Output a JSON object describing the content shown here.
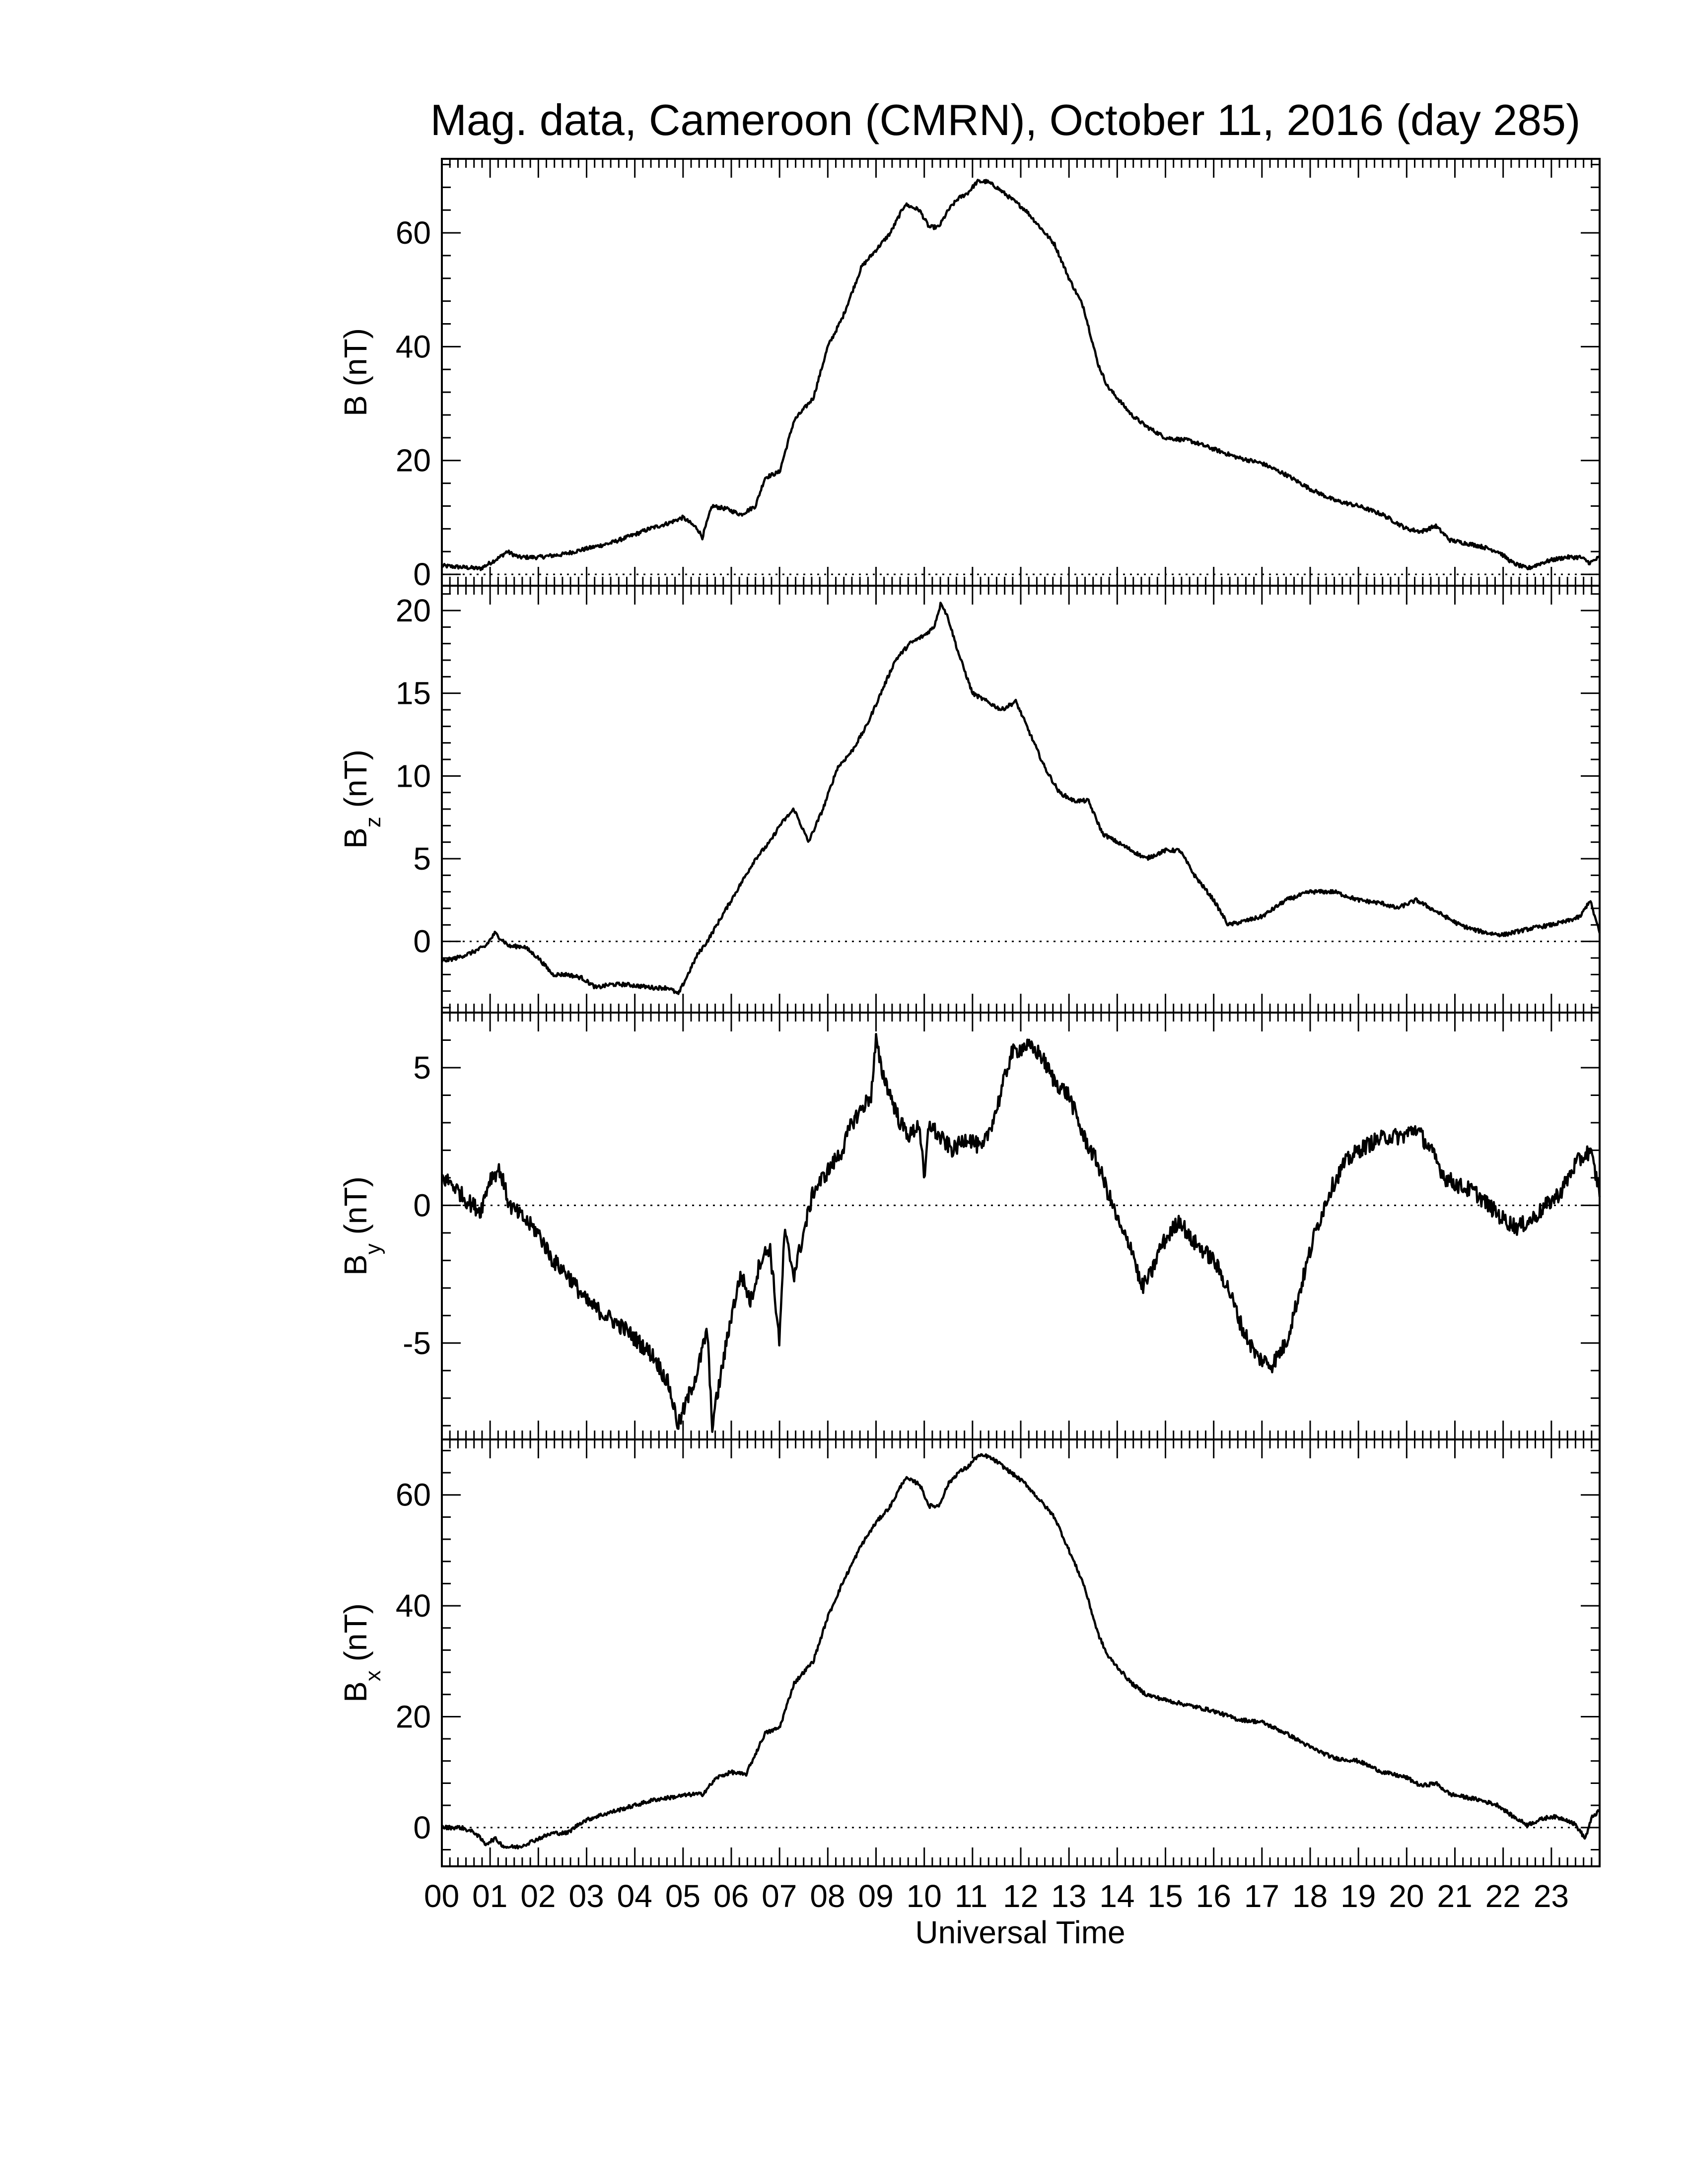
{
  "chart_data": {
    "title": "Mag. data, Cameroon (CMRN), October 11, 2016 (day 285)",
    "xlabel": "Universal Time",
    "x_tick_labels": [
      "00",
      "01",
      "02",
      "03",
      "04",
      "05",
      "06",
      "07",
      "08",
      "09",
      "10",
      "11",
      "12",
      "13",
      "14",
      "15",
      "16",
      "17",
      "18",
      "19",
      "20",
      "21",
      "22",
      "23"
    ],
    "xlim": [
      0,
      24
    ],
    "line_color": "#000000",
    "reference_line": "dotted zero line",
    "panels": [
      {
        "type": "line",
        "ylabel_main": "B",
        "ylabel_sub": "",
        "ylabel_unit": "(nT)",
        "ylim": [
          -2,
          73
        ],
        "yticks": [
          0,
          20,
          40,
          60
        ],
        "ytick_labels": [
          "0",
          "20",
          "40",
          "60"
        ],
        "noise": 0.35,
        "x": [
          0,
          0.5,
          0.8,
          1.0,
          1.2,
          1.35,
          1.6,
          2.0,
          2.5,
          3.0,
          3.5,
          4.0,
          4.3,
          4.7,
          5.0,
          5.3,
          5.4,
          5.6,
          5.9,
          6.2,
          6.5,
          6.7,
          7.0,
          7.3,
          7.7,
          8.0,
          8.3,
          8.7,
          9.0,
          9.3,
          9.6,
          9.9,
          10.1,
          10.3,
          10.5,
          10.7,
          10.9,
          11.1,
          11.3,
          11.5,
          11.8,
          12.1,
          12.4,
          12.7,
          13.0,
          13.3,
          13.6,
          13.8,
          14.0,
          14.3,
          14.6,
          15.0,
          15.5,
          16.0,
          16.5,
          17.0,
          17.5,
          18.0,
          18.5,
          19.0,
          19.5,
          20.0,
          20.3,
          20.6,
          20.9,
          21.2,
          21.5,
          21.9,
          22.2,
          22.5,
          22.8,
          23.0,
          23.3,
          23.6,
          23.8,
          24.0
        ],
        "y": [
          1.5,
          1.2,
          1.0,
          2.0,
          3.0,
          4.0,
          3.0,
          3.0,
          3.5,
          4.5,
          5.5,
          7.0,
          8.0,
          9.0,
          10.0,
          8.0,
          6.5,
          12.0,
          11.5,
          10.5,
          12.0,
          17.0,
          18.0,
          27.0,
          31.0,
          40.0,
          45.0,
          54.0,
          57.0,
          60.0,
          65.0,
          64.0,
          61.0,
          61.0,
          64.0,
          66.0,
          67.0,
          69.0,
          69.0,
          68.0,
          66.0,
          64.0,
          61.0,
          58.0,
          52.0,
          47.0,
          37.0,
          33.0,
          31.0,
          28.0,
          26.0,
          24.0,
          23.5,
          22.0,
          20.5,
          19.5,
          17.5,
          15.0,
          13.0,
          12.0,
          10.5,
          8.0,
          7.5,
          8.5,
          6.0,
          5.5,
          5.0,
          4.0,
          2.0,
          1.0,
          2.0,
          2.5,
          3.0,
          3.0,
          2.0,
          3.0
        ]
      },
      {
        "type": "line",
        "ylabel_main": "B",
        "ylabel_sub": "z",
        "ylabel_unit": "(nT)",
        "ylim": [
          -4.3,
          21.5
        ],
        "yticks": [
          0,
          5,
          10,
          15,
          20
        ],
        "ytick_labels": [
          "0",
          "5",
          "10",
          "15",
          "20"
        ],
        "noise": 0.12,
        "x": [
          0,
          0.3,
          0.6,
          0.9,
          1.1,
          1.4,
          1.7,
          2.0,
          2.3,
          2.6,
          2.9,
          3.2,
          3.5,
          3.8,
          4.1,
          4.4,
          4.7,
          4.9,
          5.1,
          5.3,
          5.5,
          5.7,
          5.9,
          6.2,
          6.5,
          6.8,
          7.0,
          7.3,
          7.6,
          7.9,
          8.2,
          8.5,
          8.8,
          9.1,
          9.4,
          9.7,
          10.0,
          10.2,
          10.35,
          10.5,
          10.7,
          11.0,
          11.3,
          11.6,
          11.9,
          12.2,
          12.5,
          12.8,
          13.1,
          13.4,
          13.7,
          14.0,
          14.3,
          14.6,
          15.0,
          15.3,
          15.6,
          16.0,
          16.3,
          16.6,
          17.0,
          17.5,
          18.0,
          18.5,
          19.0,
          19.5,
          19.8,
          20.2,
          20.5,
          20.8,
          21.1,
          21.4,
          21.7,
          22.0,
          22.3,
          22.6,
          23.0,
          23.3,
          23.6,
          23.8,
          24.0
        ],
        "y": [
          -1.2,
          -1.0,
          -0.7,
          -0.3,
          0.5,
          -0.3,
          -0.3,
          -1.0,
          -2.0,
          -2.0,
          -2.2,
          -2.8,
          -2.6,
          -2.6,
          -2.7,
          -2.8,
          -2.8,
          -3.2,
          -2.0,
          -0.8,
          0.0,
          1.0,
          2.0,
          3.5,
          5.0,
          6.0,
          7.0,
          8.0,
          6.0,
          8.0,
          10.5,
          11.5,
          13.0,
          15.0,
          17.0,
          18.0,
          18.5,
          19.0,
          20.5,
          19.5,
          17.5,
          15.0,
          14.5,
          14.0,
          14.5,
          12.5,
          10.5,
          9.0,
          8.5,
          8.5,
          6.5,
          6.0,
          5.5,
          5.0,
          5.5,
          5.5,
          4.0,
          2.5,
          1.0,
          1.2,
          1.5,
          2.5,
          3.0,
          3.0,
          2.5,
          2.3,
          2.0,
          2.5,
          2.0,
          1.5,
          1.0,
          0.7,
          0.5,
          0.4,
          0.6,
          0.8,
          1.0,
          1.2,
          1.5,
          2.5,
          0.5
        ]
      },
      {
        "type": "line",
        "ylabel_main": "B",
        "ylabel_sub": "y",
        "ylabel_unit": "(nT)",
        "ylim": [
          -8.5,
          7.0
        ],
        "yticks": [
          -5,
          0,
          5
        ],
        "ytick_labels": [
          "-5",
          "0",
          "5"
        ],
        "noise": 0.3,
        "x": [
          0,
          0.2,
          0.5,
          0.8,
          1.0,
          1.2,
          1.4,
          1.7,
          2.0,
          2.3,
          2.6,
          3.0,
          3.4,
          3.8,
          4.1,
          4.4,
          4.7,
          4.9,
          5.1,
          5.3,
          5.5,
          5.6,
          5.8,
          6.0,
          6.2,
          6.4,
          6.6,
          6.8,
          7.0,
          7.1,
          7.3,
          7.5,
          7.7,
          7.9,
          8.1,
          8.3,
          8.5,
          8.7,
          8.9,
          9.0,
          9.1,
          9.3,
          9.5,
          9.7,
          9.9,
          10.0,
          10.1,
          10.3,
          10.6,
          10.9,
          11.2,
          11.5,
          11.8,
          12.1,
          12.4,
          12.7,
          13.0,
          13.3,
          13.6,
          13.9,
          14.1,
          14.3,
          14.5,
          14.7,
          14.9,
          15.1,
          15.3,
          15.5,
          15.7,
          16.0,
          16.3,
          16.6,
          16.9,
          17.2,
          17.5,
          17.8,
          18.1,
          18.4,
          18.7,
          19.0,
          19.3,
          19.6,
          19.9,
          20.2,
          20.5,
          20.8,
          21.1,
          21.4,
          21.7,
          22.0,
          22.3,
          22.6,
          22.9,
          23.2,
          23.5,
          23.8,
          24.0
        ],
        "y": [
          1.0,
          0.8,
          0.2,
          -0.2,
          1.0,
          1.3,
          0.0,
          -0.5,
          -1.0,
          -2.0,
          -2.5,
          -3.5,
          -4.0,
          -4.5,
          -5.0,
          -5.5,
          -6.5,
          -8.0,
          -7.0,
          -6.0,
          -4.5,
          -8.0,
          -6.0,
          -4.0,
          -2.5,
          -3.5,
          -2.0,
          -1.5,
          -5.0,
          -1.0,
          -2.5,
          -1.0,
          0.5,
          1.0,
          1.5,
          2.0,
          3.0,
          3.5,
          4.0,
          6.0,
          5.0,
          4.0,
          3.0,
          2.5,
          3.0,
          0.8,
          3.0,
          2.5,
          2.0,
          2.5,
          2.0,
          3.5,
          5.5,
          5.8,
          5.5,
          4.5,
          4.0,
          2.5,
          1.5,
          0.0,
          -1.0,
          -1.5,
          -3.0,
          -2.5,
          -1.5,
          -1.0,
          -0.5,
          -1.2,
          -1.5,
          -2.0,
          -3.0,
          -4.5,
          -5.5,
          -5.8,
          -5.0,
          -3.0,
          -1.0,
          0.5,
          1.5,
          2.0,
          2.3,
          2.5,
          2.5,
          2.8,
          2.0,
          1.0,
          0.7,
          0.5,
          0.0,
          -0.5,
          -0.8,
          -0.5,
          0.0,
          0.5,
          1.5,
          2.0,
          0.5
        ]
      },
      {
        "type": "line",
        "ylabel_main": "B",
        "ylabel_sub": "x",
        "ylabel_unit": "(nT)",
        "ylim": [
          -7,
          70
        ],
        "yticks": [
          0,
          20,
          40,
          60
        ],
        "ytick_labels": [
          "0",
          "20",
          "40",
          "60"
        ],
        "noise": 0.35,
        "x": [
          0,
          0.4,
          0.7,
          0.9,
          1.1,
          1.3,
          1.6,
          2.0,
          2.3,
          2.6,
          2.9,
          3.2,
          3.6,
          4.0,
          4.4,
          4.8,
          5.2,
          5.4,
          5.7,
          6.0,
          6.3,
          6.7,
          7.0,
          7.3,
          7.7,
          8.0,
          8.3,
          8.7,
          9.0,
          9.3,
          9.6,
          9.9,
          10.1,
          10.3,
          10.5,
          10.7,
          10.9,
          11.1,
          11.3,
          11.5,
          11.8,
          12.1,
          12.4,
          12.7,
          13.0,
          13.3,
          13.6,
          13.8,
          14.0,
          14.3,
          14.6,
          15.0,
          15.5,
          16.0,
          16.5,
          17.0,
          17.5,
          18.0,
          18.5,
          19.0,
          19.5,
          20.0,
          20.3,
          20.6,
          20.9,
          21.2,
          21.5,
          21.9,
          22.2,
          22.5,
          22.8,
          23.0,
          23.3,
          23.5,
          23.7,
          23.85,
          24.0
        ],
        "y": [
          0.0,
          0.0,
          -1.0,
          -3.0,
          -2.0,
          -3.5,
          -3.5,
          -2.0,
          -1.0,
          -1.0,
          1.0,
          2.0,
          3.0,
          4.0,
          5.0,
          5.5,
          6.0,
          6.0,
          9.0,
          10.0,
          9.5,
          17.0,
          18.0,
          26.0,
          30.0,
          38.0,
          44.0,
          51.0,
          55.0,
          58.0,
          63.0,
          62.0,
          58.0,
          58.0,
          62.0,
          64.0,
          65.0,
          67.0,
          67.0,
          66.0,
          64.0,
          62.0,
          59.0,
          56.0,
          50.0,
          44.0,
          35.0,
          31.0,
          29.0,
          26.0,
          24.0,
          23.0,
          22.0,
          21.0,
          19.5,
          19.0,
          17.0,
          14.5,
          12.5,
          12.0,
          10.0,
          9.0,
          7.5,
          8.0,
          6.0,
          5.5,
          5.0,
          4.0,
          2.0,
          0.5,
          1.5,
          2.0,
          1.5,
          0.5,
          -2.0,
          2.0,
          3.0
        ]
      }
    ]
  }
}
